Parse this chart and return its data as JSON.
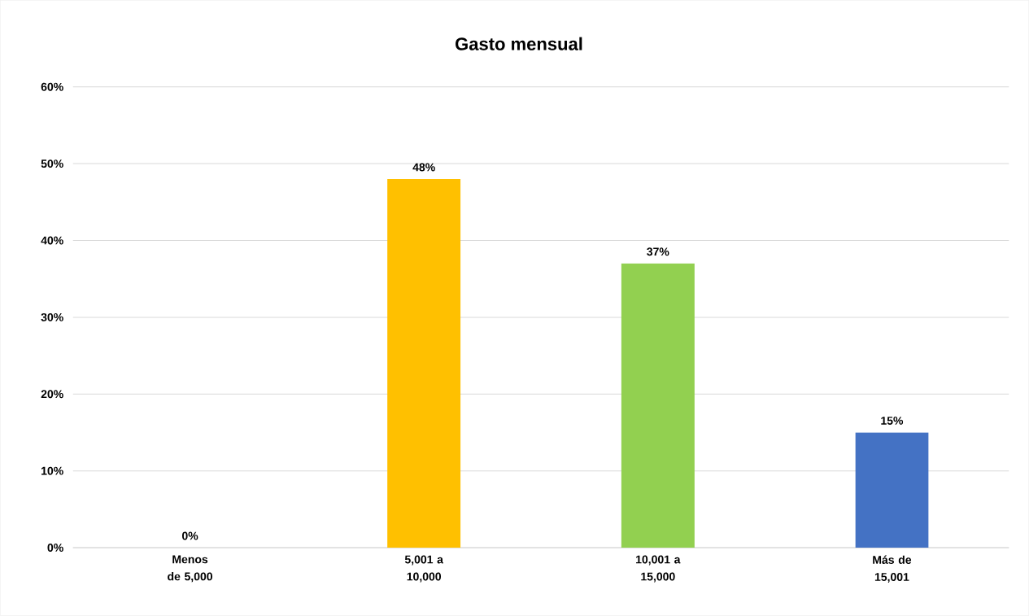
{
  "chart_data": {
    "type": "bar",
    "title": "Gasto mensual",
    "categories": [
      "Menos de 5,000",
      "5,001 a 10,000",
      "10,001 a 15,000",
      "Más de 15,001"
    ],
    "values": [
      0,
      48,
      37,
      15
    ],
    "colors": [
      "#ed7d31",
      "#ffc000",
      "#92d050",
      "#4472c4"
    ],
    "value_labels": [
      "0%",
      "48%",
      "37%",
      "15%"
    ],
    "ylim": [
      0,
      60
    ],
    "yticks": [
      {
        "value": 0,
        "label": "0%"
      },
      {
        "value": 10,
        "label": "10%"
      },
      {
        "value": 20,
        "label": "20%"
      },
      {
        "value": 30,
        "label": "30%"
      },
      {
        "value": 40,
        "label": "40%"
      },
      {
        "value": 50,
        "label": "50%"
      },
      {
        "value": 60,
        "label": "60%"
      }
    ],
    "grid": "y"
  }
}
